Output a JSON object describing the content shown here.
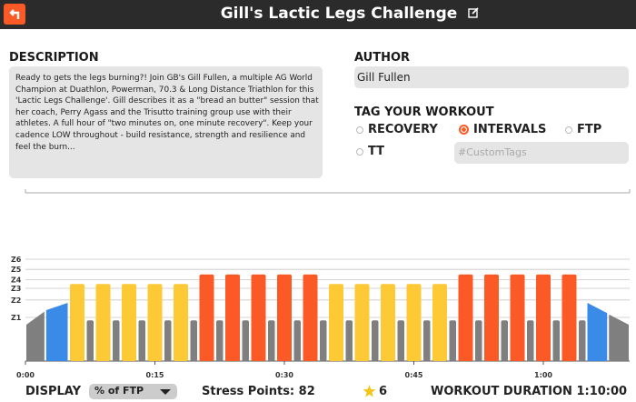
{
  "header": {
    "title": "Gill's Lactic Legs Challenge"
  },
  "description": {
    "label": "DESCRIPTION",
    "text": "Ready to gets the legs burning?! Join GB's Gill Fullen, a multiple AG World Champion at Duathlon, Powerman, 70.3 & Long Distance Triathlon for this 'Lactic Legs Challenge'. Gill describes it as a \"bread an butter\" session that her coach, Perry Agass and the Trisutto training group use with their athletes. A full hour of \"two minutes on, one minute recovery\". Keep your cadence LOW throughout - build resistance, strength and resilience and feel the burn..."
  },
  "author": {
    "label": "AUTHOR",
    "value": "Gill Fullen"
  },
  "tags": {
    "label": "TAG YOUR WORKOUT",
    "options": [
      {
        "label": "RECOVERY",
        "selected": false
      },
      {
        "label": "INTERVALS",
        "selected": true
      },
      {
        "label": "FTP",
        "selected": false
      },
      {
        "label": "TT",
        "selected": false
      }
    ],
    "placeholder": "#CustomTags"
  },
  "workout": {
    "xlim": [
      0,
      70
    ],
    "xticks": [
      {
        "value": 0,
        "label": "0:00"
      },
      {
        "value": 15,
        "label": "0:15"
      },
      {
        "value": 30,
        "label": "0:30"
      },
      {
        "value": 45,
        "label": "0:45"
      },
      {
        "value": 60,
        "label": "1:00"
      }
    ],
    "ylim": [
      0,
      225
    ],
    "zones": [
      {
        "value": 60,
        "label": "Z1"
      },
      {
        "value": 84,
        "label": "Z2"
      },
      {
        "value": 100,
        "label": "Z3"
      },
      {
        "value": 112,
        "label": "Z4"
      },
      {
        "value": 126,
        "label": "Z5"
      },
      {
        "value": 140,
        "label": "Z6"
      }
    ],
    "ramps": [
      {
        "start": 0,
        "duration": 2.3,
        "from": 50,
        "to": 68,
        "color": "#7f7f7f"
      },
      {
        "start": 2.3,
        "duration": 2.7,
        "from": 70,
        "to": 80,
        "color": "#3a8ae8"
      },
      {
        "start": 65,
        "duration": 2.5,
        "from": 80,
        "to": 66,
        "color": "#3a8ae8"
      },
      {
        "start": 67.5,
        "duration": 2.5,
        "from": 64,
        "to": 50,
        "color": "#7f7f7f"
      }
    ],
    "sets": [
      {
        "start": 5,
        "repeats": 5,
        "on": 2,
        "off": 1,
        "on_power": 106,
        "off_power": 56,
        "color": "#fdc935"
      },
      {
        "start": 20,
        "repeats": 5,
        "on": 2,
        "off": 1,
        "on_power": 119,
        "off_power": 56,
        "color": "#fb5a26"
      },
      {
        "start": 35,
        "repeats": 5,
        "on": 2,
        "off": 1,
        "on_power": 106,
        "off_power": 56,
        "color": "#fdc935"
      },
      {
        "start": 50,
        "repeats": 5,
        "on": 2,
        "off": 1,
        "on_power": 119,
        "off_power": 56,
        "color": "#fb5a26"
      }
    ],
    "off_color": "#7f7f7f"
  },
  "footer": {
    "display_label": "DISPLAY",
    "display_value": "% of FTP",
    "stress_label": "Stress Points:",
    "stress_value": 82,
    "rating": 6,
    "duration_label": "WORKOUT DURATION",
    "duration": "1:10:00"
  }
}
